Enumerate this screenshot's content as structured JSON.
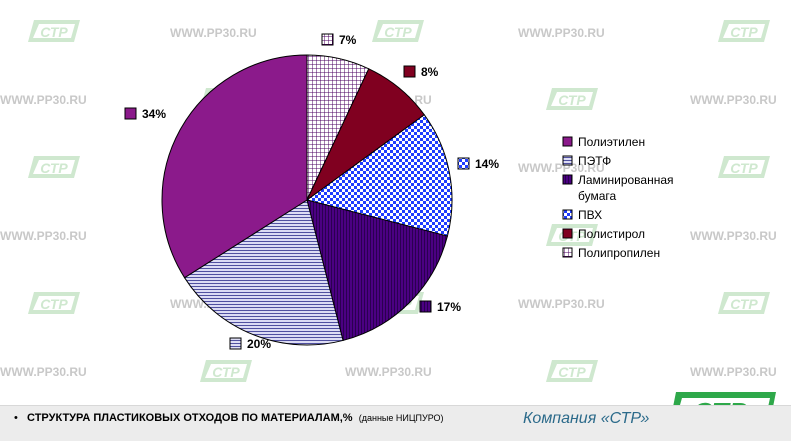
{
  "watermark": {
    "text": "WWW.PP30.RU",
    "logo_text": "СТР"
  },
  "chart_data": {
    "type": "pie",
    "title": "",
    "slices": [
      {
        "label": "Полипропилен",
        "value": 7,
        "label_text": "7%",
        "color": "#ffffff",
        "pattern": "grid"
      },
      {
        "label": "Полистирол",
        "value": 8,
        "label_text": "8%",
        "color": "#800020",
        "pattern": "solid"
      },
      {
        "label": "ПВХ",
        "value": 14,
        "label_text": "14%",
        "color": "#2040ff",
        "pattern": "checker"
      },
      {
        "label": "Ламинированная бумага",
        "value": 17,
        "label_text": "17%",
        "color": "#4b0082",
        "pattern": "vertical"
      },
      {
        "label": "ПЭТФ",
        "value": 20,
        "label_text": "20%",
        "color": "#c8c8f0",
        "pattern": "horizontal"
      },
      {
        "label": "Полиэтилен",
        "value": 34,
        "label_text": "34%",
        "color": "#8b1a8b",
        "pattern": "solid"
      }
    ],
    "legend": {
      "placement": "right",
      "entries": [
        "Полиэтилен",
        "ПЭТФ",
        "Ламинированная бумага",
        "ПВХ",
        "Полистирол",
        "Полипропилен"
      ],
      "lines": [
        [
          "Полиэтилен"
        ],
        [
          "ПЭТФ"
        ],
        [
          "Ламинированная",
          "бумага"
        ],
        [
          "ПВХ"
        ],
        [
          "Полистирол"
        ],
        [
          "Полипропилен"
        ]
      ]
    }
  },
  "footer": {
    "bullet": "•",
    "caption_main": "СТРУКТУРА ПЛАСТИКОВЫХ ОТХОДОВ ПО МАТЕРИАЛАМ,%",
    "caption_note": "(данные НИЦПУРО)",
    "company": "Компания «СТР»",
    "logo_text": "СТР"
  }
}
